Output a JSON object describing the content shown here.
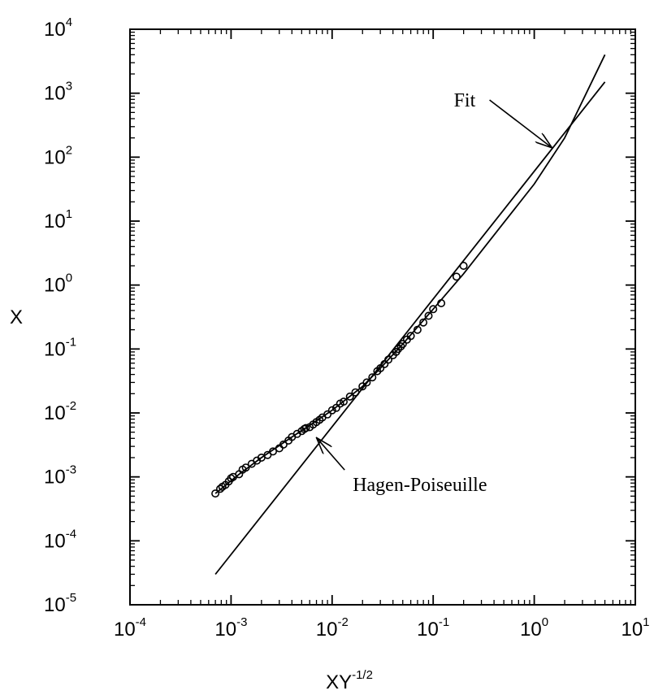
{
  "chart_data": {
    "type": "scatter",
    "title": "",
    "xlabel": "XY",
    "xlabel_exponent": "-1/2",
    "ylabel": "X",
    "xscale": "log",
    "yscale": "log",
    "xlim": [
      0.0001,
      10
    ],
    "ylim": [
      1e-05,
      10000
    ],
    "x_ticks": [
      {
        "base": "10",
        "exp": "-4",
        "value": 0.0001
      },
      {
        "base": "10",
        "exp": "-3",
        "value": 0.001
      },
      {
        "base": "10",
        "exp": "-2",
        "value": 0.01
      },
      {
        "base": "10",
        "exp": "-1",
        "value": 0.1
      },
      {
        "base": "10",
        "exp": "0",
        "value": 1
      },
      {
        "base": "10",
        "exp": "1",
        "value": 10
      }
    ],
    "y_ticks": [
      {
        "base": "10",
        "exp": "-5",
        "value": 1e-05
      },
      {
        "base": "10",
        "exp": "-4",
        "value": 0.0001
      },
      {
        "base": "10",
        "exp": "-3",
        "value": 0.001
      },
      {
        "base": "10",
        "exp": "-2",
        "value": 0.01
      },
      {
        "base": "10",
        "exp": "-1",
        "value": 0.1
      },
      {
        "base": "10",
        "exp": "0",
        "value": 1
      },
      {
        "base": "10",
        "exp": "1",
        "value": 10
      },
      {
        "base": "10",
        "exp": "2",
        "value": 100
      },
      {
        "base": "10",
        "exp": "3",
        "value": 1000
      },
      {
        "base": "10",
        "exp": "4",
        "value": 10000
      }
    ],
    "grid": false,
    "series": [
      {
        "kind": "scatter",
        "marker": "open-circle",
        "points": [
          [
            0.0007,
            0.00055
          ],
          [
            0.00078,
            0.00065
          ],
          [
            0.00082,
            0.0007
          ],
          [
            0.00088,
            0.00075
          ],
          [
            0.00095,
            0.00085
          ],
          [
            0.001,
            0.00095
          ],
          [
            0.00105,
            0.001
          ],
          [
            0.0012,
            0.0011
          ],
          [
            0.0013,
            0.0013
          ],
          [
            0.0014,
            0.0014
          ],
          [
            0.0016,
            0.0016
          ],
          [
            0.0018,
            0.0018
          ],
          [
            0.002,
            0.002
          ],
          [
            0.0023,
            0.0022
          ],
          [
            0.0026,
            0.0025
          ],
          [
            0.003,
            0.0028
          ],
          [
            0.0033,
            0.0032
          ],
          [
            0.0037,
            0.0037
          ],
          [
            0.004,
            0.0042
          ],
          [
            0.0045,
            0.0047
          ],
          [
            0.005,
            0.0052
          ],
          [
            0.0053,
            0.0056
          ],
          [
            0.0055,
            0.0058
          ],
          [
            0.006,
            0.006
          ],
          [
            0.0065,
            0.0066
          ],
          [
            0.007,
            0.0072
          ],
          [
            0.0075,
            0.0078
          ],
          [
            0.008,
            0.0085
          ],
          [
            0.009,
            0.0095
          ],
          [
            0.01,
            0.011
          ],
          [
            0.011,
            0.012
          ],
          [
            0.012,
            0.014
          ],
          [
            0.013,
            0.015
          ],
          [
            0.015,
            0.018
          ],
          [
            0.017,
            0.021
          ],
          [
            0.02,
            0.026
          ],
          [
            0.022,
            0.03
          ],
          [
            0.025,
            0.036
          ],
          [
            0.028,
            0.045
          ],
          [
            0.03,
            0.05
          ],
          [
            0.033,
            0.058
          ],
          [
            0.036,
            0.068
          ],
          [
            0.04,
            0.08
          ],
          [
            0.043,
            0.09
          ],
          [
            0.045,
            0.1
          ],
          [
            0.048,
            0.11
          ],
          [
            0.05,
            0.12
          ],
          [
            0.055,
            0.14
          ],
          [
            0.06,
            0.16
          ],
          [
            0.07,
            0.2
          ],
          [
            0.08,
            0.26
          ],
          [
            0.09,
            0.33
          ],
          [
            0.1,
            0.42
          ],
          [
            0.12,
            0.52
          ],
          [
            0.17,
            1.35
          ],
          [
            0.2,
            2.0
          ]
        ]
      },
      {
        "kind": "line",
        "name": "Fit",
        "points": [
          [
            0.0007,
            0.00055
          ],
          [
            0.0012,
            0.0011
          ],
          [
            0.002,
            0.002
          ],
          [
            0.004,
            0.0042
          ],
          [
            0.007,
            0.0075
          ],
          [
            0.01,
            0.011
          ],
          [
            0.02,
            0.026
          ],
          [
            0.03,
            0.05
          ],
          [
            0.05,
            0.12
          ],
          [
            0.1,
            0.42
          ],
          [
            0.2,
            1.5
          ],
          [
            0.5,
            9.5
          ],
          [
            1,
            38
          ],
          [
            2,
            200
          ],
          [
            5,
            4000
          ]
        ]
      },
      {
        "kind": "line",
        "name": "Hagen-Poiseuille",
        "points": [
          [
            0.0007,
            3e-05
          ],
          [
            5,
            1500
          ]
        ]
      }
    ],
    "annotations": [
      {
        "text": "Fit",
        "label_at": [
          0.16,
          620
        ],
        "points_to": [
          1.5,
          140
        ]
      },
      {
        "text": "Hagen-Poiseuille",
        "label_at": [
          0.016,
          0.0006
        ],
        "points_to": [
          0.007,
          0.0041
        ]
      }
    ]
  }
}
